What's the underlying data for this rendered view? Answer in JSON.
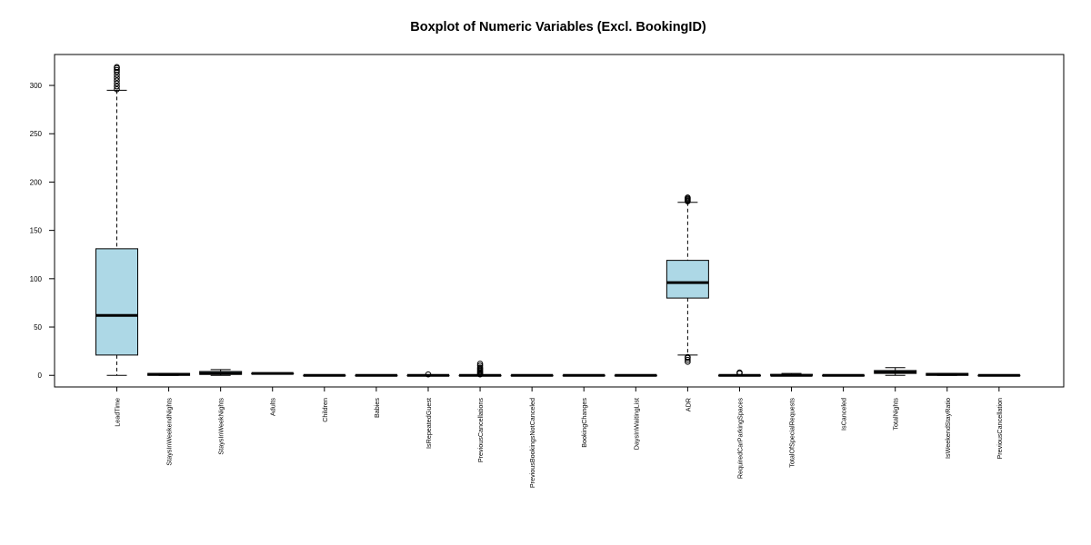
{
  "chart_data": {
    "type": "boxplot",
    "title": "Boxplot of Numeric Variables (Excl. BookingID)",
    "xlabel": "",
    "ylabel": "",
    "ylim": [
      -12,
      332
    ],
    "y_ticks": [
      0,
      50,
      100,
      150,
      200,
      250,
      300
    ],
    "box_color": "#add8e6",
    "series": [
      {
        "name": "LeadTime",
        "min": 0,
        "q1": 21,
        "median": 62,
        "q3": 131,
        "max": 295,
        "outliers": [
          296,
          299,
          302,
          305,
          308,
          311,
          314,
          316,
          318,
          319
        ]
      },
      {
        "name": "StaysInWeekendNights",
        "min": 0,
        "q1": 0,
        "median": 1,
        "q3": 2,
        "max": 2,
        "outliers": []
      },
      {
        "name": "StaysInWeekNights",
        "min": 0,
        "q1": 1,
        "median": 2,
        "q3": 4,
        "max": 6,
        "outliers": []
      },
      {
        "name": "Adults",
        "min": 2,
        "q1": 2,
        "median": 2,
        "q3": 2,
        "max": 2,
        "outliers": []
      },
      {
        "name": "Children",
        "min": 0,
        "q1": 0,
        "median": 0,
        "q3": 0,
        "max": 0,
        "outliers": []
      },
      {
        "name": "Babies",
        "min": 0,
        "q1": 0,
        "median": 0,
        "q3": 0,
        "max": 0,
        "outliers": []
      },
      {
        "name": "IsRepeatedGuest",
        "min": 0,
        "q1": 0,
        "median": 0,
        "q3": 0,
        "max": 0,
        "outliers": [
          1
        ]
      },
      {
        "name": "PreviousCancellations",
        "min": 0,
        "q1": 0,
        "median": 0,
        "q3": 0,
        "max": 0,
        "outliers": [
          1,
          2,
          3,
          4,
          5,
          6,
          7,
          8,
          10,
          12
        ]
      },
      {
        "name": "PreviousBookingsNotCanceled",
        "min": 0,
        "q1": 0,
        "median": 0,
        "q3": 0,
        "max": 0,
        "outliers": []
      },
      {
        "name": "BookingChanges",
        "min": 0,
        "q1": 0,
        "median": 0,
        "q3": 0,
        "max": 0,
        "outliers": []
      },
      {
        "name": "DaysInWaitingList",
        "min": 0,
        "q1": 0,
        "median": 0,
        "q3": 0,
        "max": 0,
        "outliers": []
      },
      {
        "name": "ADR",
        "min": 21,
        "q1": 80,
        "median": 96,
        "q3": 119,
        "max": 179,
        "outliers": [
          14,
          16,
          18,
          19,
          180,
          181,
          182,
          183,
          184
        ]
      },
      {
        "name": "RequiredCarParkingSpaces",
        "min": 0,
        "q1": 0,
        "median": 0,
        "q3": 0,
        "max": 0,
        "outliers": [
          2,
          3
        ]
      },
      {
        "name": "TotalOfSpecialRequests",
        "min": 0,
        "q1": 0,
        "median": 0,
        "q3": 1,
        "max": 2,
        "outliers": []
      },
      {
        "name": "IsCanceled",
        "min": 0,
        "q1": 0,
        "median": 0,
        "q3": 0,
        "max": 0,
        "outliers": []
      },
      {
        "name": "TotalNights",
        "min": 0,
        "q1": 2,
        "median": 3,
        "q3": 5,
        "max": 8,
        "outliers": []
      },
      {
        "name": "IsWeekendStayRatio",
        "min": 0,
        "q1": 0,
        "median": 1,
        "q3": 2,
        "max": 2,
        "outliers": []
      },
      {
        "name": "PreviousCancellation",
        "min": 0,
        "q1": 0,
        "median": 0,
        "q3": 0,
        "max": 0,
        "outliers": []
      }
    ]
  }
}
